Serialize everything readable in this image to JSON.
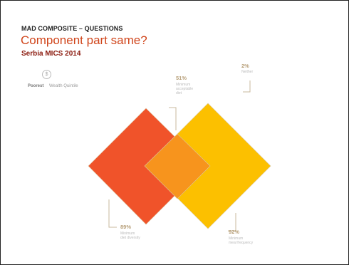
{
  "header": {
    "kicker": "MAD COMPOSITE – QUESTIONS",
    "title": "Component part same?",
    "subtitle": "Serbia MICS 2014"
  },
  "legend": {
    "coin_symbol": "$",
    "poorest": "Poorest",
    "quintile": "Wealth Quintile"
  },
  "diagram": {
    "sets": [
      {
        "id": "dietdiv",
        "percent": "89%",
        "label": "Minimum\ndiet diversity",
        "color": "#f0532a"
      },
      {
        "id": "mealfreq",
        "percent": "92%",
        "label": "Minimum\nmeal frequency",
        "color": "#fcc000"
      }
    ],
    "overlap": {
      "percent": "51%",
      "label": "Minimum\nacceptable\ndiet",
      "color": "#f7941d"
    },
    "neither": {
      "percent": "2%",
      "label": "Neither"
    },
    "stroke_color": "#c8b99c"
  }
}
